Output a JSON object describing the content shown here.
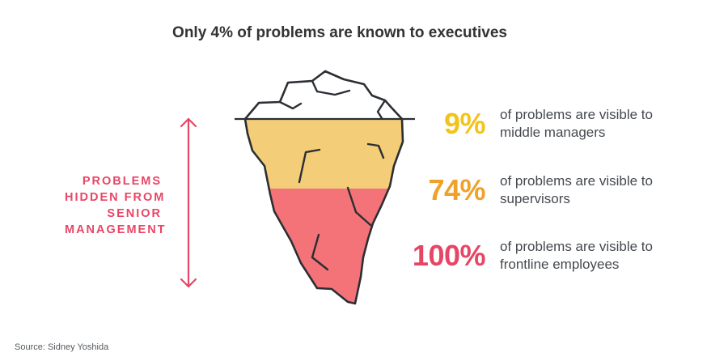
{
  "title": "Only 4% of problems are known to executives",
  "hidden_label": [
    "PROBLEMS",
    "HIDDEN FROM",
    "SENIOR",
    "MANAGEMENT"
  ],
  "stats": [
    {
      "value": "9%",
      "line1": "of problems are visible to",
      "line2": "middle managers",
      "color": "#f2c419"
    },
    {
      "value": "74%",
      "line1": "of problems are visible to",
      "line2": "supervisors",
      "color": "#f0a12a"
    },
    {
      "value": "100%",
      "line1": "of problems are visible to",
      "line2": "frontline employees",
      "color": "#e84566"
    }
  ],
  "source": "Source: Sidney Yoshida",
  "colors": {
    "tip": "#ffffff",
    "middle": "#f3cd78",
    "bottom": "#f47378",
    "outline": "#2b2e33",
    "arrow": "#e84566"
  }
}
